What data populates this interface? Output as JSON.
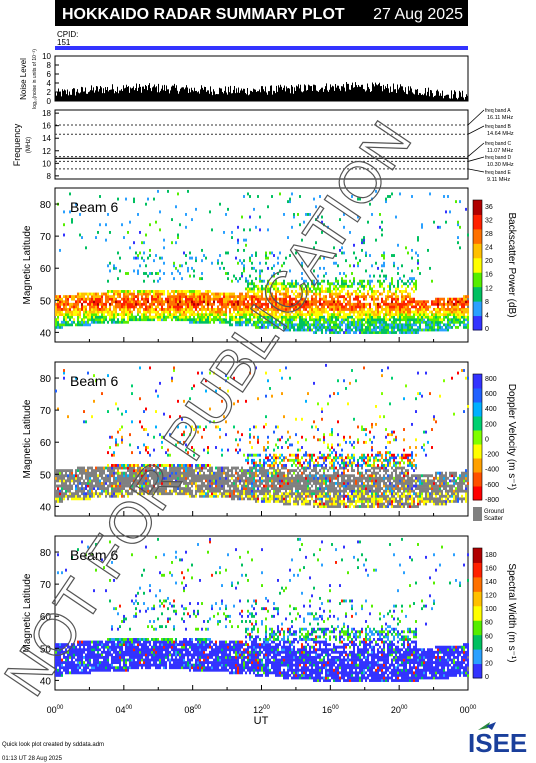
{
  "header": {
    "title": "HOKKAIDO RADAR SUMMARY PLOT",
    "date": "27 Aug 2025",
    "cpid_label": "CPID:",
    "cpid_value": "151"
  },
  "noise": {
    "ylabel": "Noise Level",
    "ysub": "log₁₀(noise in units of 10⁻³)",
    "ticks": [
      "0",
      "2",
      "4",
      "6",
      "8",
      "10"
    ]
  },
  "frequency": {
    "ylabel": "Frequency",
    "unit": "(MHz)",
    "ticks": [
      "8",
      "10",
      "12",
      "14",
      "16",
      "18"
    ],
    "bands": [
      {
        "label": "freq band A",
        "value": "16.11 MHz"
      },
      {
        "label": "freq band B",
        "value": "14.64 MHz"
      },
      {
        "label": "freq band C",
        "value": "11.07 MHz"
      },
      {
        "label": "freq band D",
        "value": "10.30 MHz"
      },
      {
        "label": "freq band E",
        "value": "9.11 MHz"
      }
    ]
  },
  "panels": [
    {
      "beam": "Beam  6",
      "ylabel": "Magnetic Latitude",
      "cblabel": "Backscatter Power (dB)",
      "cbticks": [
        "0",
        "4",
        "8",
        "12",
        "16",
        "20",
        "24",
        "28",
        "32",
        "36"
      ]
    },
    {
      "beam": "Beam  6",
      "ylabel": "Magnetic Latitude",
      "cblabel": "Doppler Velocity (m s⁻¹)",
      "cbticks": [
        "800",
        "600",
        "400",
        "200",
        "0",
        "-200",
        "-400",
        "-600",
        "-800"
      ],
      "gs1": "Ground",
      "gs2": "Scatter"
    },
    {
      "beam": "Beam  6",
      "ylabel": "Magnetic Latitude",
      "cblabel": "Spectral Width (m s⁻¹)",
      "cbticks": [
        "0",
        "20",
        "40",
        "60",
        "80",
        "100",
        "120",
        "140",
        "160",
        "180"
      ]
    }
  ],
  "lat_ticks": [
    "40",
    "50",
    "60",
    "70",
    "80"
  ],
  "xaxis": {
    "label": "UT",
    "ticks": [
      {
        "h": "00",
        "m": "00"
      },
      {
        "h": "04",
        "m": "00"
      },
      {
        "h": "08",
        "m": "00"
      },
      {
        "h": "12",
        "m": "00"
      },
      {
        "h": "16",
        "m": "00"
      },
      {
        "h": "20",
        "m": "00"
      },
      {
        "h": "00",
        "m": "00"
      }
    ]
  },
  "footer": {
    "credit": "Quick look plot created by sddata.adm",
    "timestamp": "01:13 UT 28 Aug 2025",
    "logo": "ISEE"
  },
  "watermark": "NOT FOR PUBLICATION",
  "chart_data": {
    "type": "heatmap",
    "title": "HOKKAIDO RADAR SUMMARY PLOT",
    "x_range_hours_UT": [
      0,
      24
    ],
    "y_range_magnetic_latitude": [
      37,
      85
    ],
    "freq_range_MHz": [
      7.5,
      18.5
    ],
    "noise_range": [
      0,
      10
    ],
    "frequency_bands_MHz": [
      16.11,
      14.64,
      11.07,
      10.3,
      9.11
    ],
    "panels": [
      "Backscatter Power (dB)",
      "Doppler Velocity (m s⁻¹)",
      "Spectral Width (m s⁻¹)"
    ],
    "power_range_dB": [
      0,
      36
    ],
    "velocity_range": [
      -800,
      800
    ],
    "width_range": [
      0,
      180
    ]
  }
}
